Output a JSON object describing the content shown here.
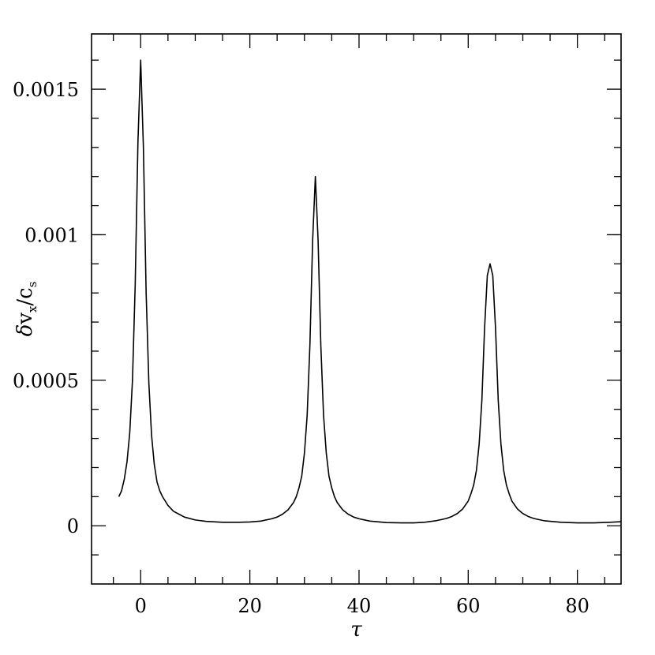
{
  "chart_data": {
    "type": "line",
    "title": "",
    "xlabel": "τ",
    "ylabel": {
      "delta": "δ",
      "v": "v",
      "v_sub": "x",
      "slash": "/",
      "c": "c",
      "c_sub": "s"
    },
    "xlim": [
      -9,
      88
    ],
    "ylim": [
      -0.0002,
      0.00169
    ],
    "x_ticks": [
      0,
      20,
      40,
      60,
      80
    ],
    "x_tick_labels": [
      "0",
      "20",
      "40",
      "60",
      "80"
    ],
    "y_ticks": [
      0,
      0.0005,
      0.001,
      0.0015
    ],
    "y_tick_labels": [
      "0",
      "0.0005",
      "0.001",
      "0.0015"
    ],
    "grid": false,
    "legend": "none",
    "series": [
      {
        "color": "#000000",
        "x": [
          -4.0,
          -3.5,
          -3.0,
          -2.5,
          -2.0,
          -1.5,
          -1.0,
          -0.5,
          0.0,
          0.5,
          1.0,
          1.5,
          2.0,
          2.5,
          3.0,
          3.5,
          4.0,
          5.0,
          6.0,
          7.0,
          8.0,
          10.0,
          12.0,
          15.0,
          18.0,
          20.0,
          22.0,
          24.0,
          25.0,
          26.0,
          27.0,
          28.0,
          28.5,
          29.0,
          29.5,
          30.0,
          30.5,
          31.0,
          31.5,
          32.0,
          32.5,
          33.0,
          33.5,
          34.0,
          34.5,
          35.0,
          35.5,
          36.0,
          37.0,
          38.0,
          39.0,
          40.0,
          42.0,
          45.0,
          48.0,
          50.0,
          52.0,
          54.0,
          56.0,
          57.0,
          58.0,
          59.0,
          60.0,
          60.5,
          61.0,
          61.5,
          62.0,
          62.5,
          63.0,
          63.5,
          64.0,
          64.5,
          65.0,
          65.5,
          66.0,
          66.5,
          67.0,
          67.5,
          68.0,
          69.0,
          70.0,
          71.0,
          72.0,
          74.0,
          77.0,
          80.0,
          83.0,
          86.0,
          88.0
        ],
        "y": [
          0.0001,
          0.00012,
          0.00016,
          0.00022,
          0.00032,
          0.0005,
          0.00083,
          0.00132,
          0.0016,
          0.0013,
          0.0008,
          0.00049,
          0.00031,
          0.00021,
          0.00015,
          0.00012,
          0.0001,
          7e-05,
          5e-05,
          4e-05,
          3e-05,
          2e-05,
          1.5e-05,
          1.2e-05,
          1.2e-05,
          1.3e-05,
          1.6e-05,
          2.4e-05,
          3e-05,
          4e-05,
          5.5e-05,
          8e-05,
          0.0001,
          0.00013,
          0.00017,
          0.00025,
          0.00038,
          0.00062,
          0.00098,
          0.0012,
          0.00098,
          0.00062,
          0.00038,
          0.00025,
          0.00017,
          0.00013,
          0.0001,
          8e-05,
          5.5e-05,
          4e-05,
          3e-05,
          2.4e-05,
          1.6e-05,
          1.1e-05,
          1e-05,
          1e-05,
          1.2e-05,
          1.7e-05,
          2.5e-05,
          3.2e-05,
          4.2e-05,
          5.8e-05,
          8.5e-05,
          0.00011,
          0.00014,
          0.00019,
          0.00028,
          0.00043,
          0.00068,
          0.00086,
          0.0009,
          0.00086,
          0.00068,
          0.00043,
          0.00028,
          0.00019,
          0.00014,
          0.00011,
          8.5e-05,
          5.8e-05,
          4.2e-05,
          3.2e-05,
          2.5e-05,
          1.7e-05,
          1.2e-05,
          1e-05,
          1e-05,
          1.2e-05,
          1.4e-05
        ]
      }
    ]
  }
}
